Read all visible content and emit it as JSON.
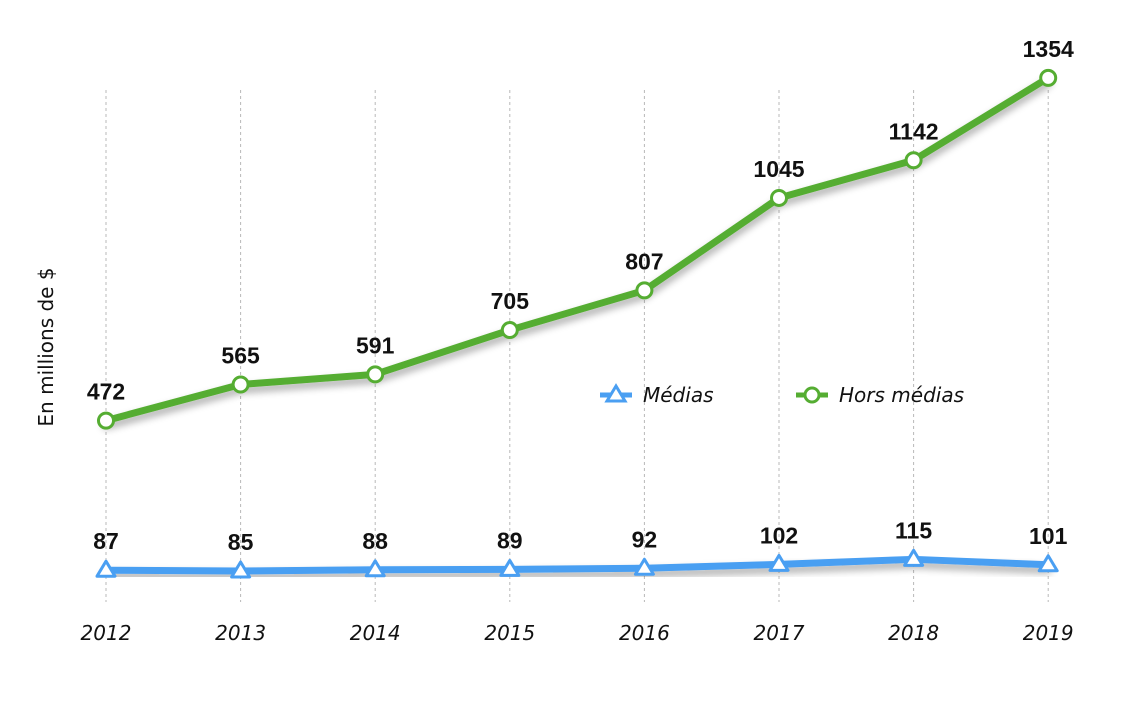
{
  "chart_data": {
    "type": "line",
    "ylabel": "En millions de $",
    "x": [
      "2012",
      "2013",
      "2014",
      "2015",
      "2016",
      "2017",
      "2018",
      "2019"
    ],
    "series": [
      {
        "name": "Médias",
        "values": [
          87,
          85,
          88,
          89,
          92,
          102,
          115,
          101
        ],
        "color": "#4a9ff2",
        "marker": "triangle"
      },
      {
        "name": "Hors médias",
        "values": [
          472,
          565,
          591,
          705,
          807,
          1045,
          1142,
          1354
        ],
        "color": "#55ad32",
        "marker": "circle"
      }
    ],
    "ylim": [
      0,
      1400
    ],
    "grid": "vertical-dashed",
    "legend_position": "center-right"
  }
}
